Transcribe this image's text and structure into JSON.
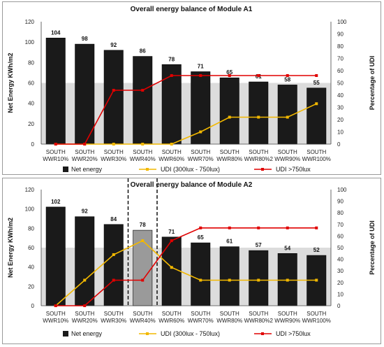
{
  "chart_data": [
    {
      "type": "bar",
      "title": "Overall energy balance of Module A1",
      "ylabel": "Net Energy KWh/m2",
      "y2label": "Percentage of UDI",
      "ylim": [
        0,
        120
      ],
      "y2lim": [
        0,
        100
      ],
      "yticks": [
        "0",
        "20",
        "40",
        "60",
        "80",
        "100",
        "120"
      ],
      "y2ticks": [
        "0",
        "10",
        "20",
        "30",
        "40",
        "50",
        "60",
        "70",
        "80",
        "90",
        "100"
      ],
      "categories": [
        [
          "SOUTH",
          "WWR10%"
        ],
        [
          "SOUTH",
          "WWR20%"
        ],
        [
          "SOUTH",
          "WWR30%"
        ],
        [
          "SOUTH",
          "WWR40%"
        ],
        [
          "SOUTH",
          "WWR60%"
        ],
        [
          "SOUTH",
          "WWR70%"
        ],
        [
          "SOUTH",
          "WWR80%"
        ],
        [
          "SOUTH",
          "WWR80%2"
        ],
        [
          "SOUTH",
          "WWR90%"
        ],
        [
          "SOUTH",
          "WWR100%"
        ]
      ],
      "shaded_band_ylim": [
        0,
        60
      ],
      "series": [
        {
          "name": "Net energy",
          "type": "bar",
          "axis": "left",
          "color": "#1a1a1a",
          "values": [
            104,
            98,
            92,
            86,
            78,
            71,
            65,
            61,
            58,
            55
          ],
          "labels": [
            "104",
            "98",
            "92",
            "86",
            "78",
            "71",
            "65",
            "61",
            "58",
            "55"
          ]
        },
        {
          "name": "UDI (300lux - 750lux)",
          "type": "line",
          "axis": "right",
          "color": "#f2b800",
          "values": [
            0,
            0,
            0,
            0,
            0,
            10,
            22,
            22,
            22,
            33
          ]
        },
        {
          "name": "UDI >750lux",
          "type": "line",
          "axis": "right",
          "color": "#e00000",
          "values": [
            0,
            0,
            44,
            44,
            56,
            56,
            56,
            56,
            56,
            56
          ]
        }
      ],
      "legend": {
        "placement": "bottom",
        "entries": [
          "Net energy",
          "UDI (300lux - 750lux)",
          "UDI >750lux"
        ]
      }
    },
    {
      "type": "bar",
      "title": "Overall energy balance of  Module A2",
      "ylabel": "Net Energy KWh/m2",
      "y2label": "Percentage of UDI",
      "ylim": [
        0,
        120
      ],
      "y2lim": [
        0,
        100
      ],
      "yticks": [
        "0",
        "20",
        "40",
        "60",
        "80",
        "100",
        "120"
      ],
      "y2ticks": [
        "0",
        "10",
        "20",
        "30",
        "40",
        "50",
        "60",
        "70",
        "80",
        "90",
        "100"
      ],
      "categories": [
        [
          "SOUTH",
          "WWR10%"
        ],
        [
          "SOUTH",
          "WWR20%"
        ],
        [
          "SOUTH",
          "WWR30%"
        ],
        [
          "SOUTH",
          "WWR40%"
        ],
        [
          "SOUTH",
          "WWR60%"
        ],
        [
          "SOUTH",
          "WWR70%"
        ],
        [
          "SOUTH",
          "WWR80%"
        ],
        [
          "SOUTH",
          "WWR80%2"
        ],
        [
          "SOUTH",
          "WWR90%"
        ],
        [
          "SOUTH",
          "WWR100%"
        ]
      ],
      "shaded_band_ylim": [
        0,
        60
      ],
      "highlight_index": 3,
      "highlight_color": "#9a9a9a",
      "series": [
        {
          "name": "Net energy",
          "type": "bar",
          "axis": "left",
          "color": "#1a1a1a",
          "values": [
            102,
            92,
            84,
            78,
            71,
            65,
            61,
            57,
            54,
            52
          ],
          "labels": [
            "102",
            "92",
            "84",
            "78",
            "71",
            "65",
            "61",
            "57",
            "54",
            "52"
          ]
        },
        {
          "name": "UDI (300lux - 750lux)",
          "type": "line",
          "axis": "right",
          "color": "#f2b800",
          "values": [
            0,
            22,
            44,
            56,
            33,
            22,
            22,
            22,
            22,
            22
          ]
        },
        {
          "name": "UDI >750lux",
          "type": "line",
          "axis": "right",
          "color": "#e00000",
          "values": [
            0,
            0,
            22,
            22,
            56,
            67,
            67,
            67,
            67,
            67
          ]
        }
      ],
      "legend": {
        "placement": "bottom",
        "entries": [
          "Net energy",
          "UDI (300lux - 750lux)",
          "UDI >750lux"
        ]
      }
    }
  ]
}
